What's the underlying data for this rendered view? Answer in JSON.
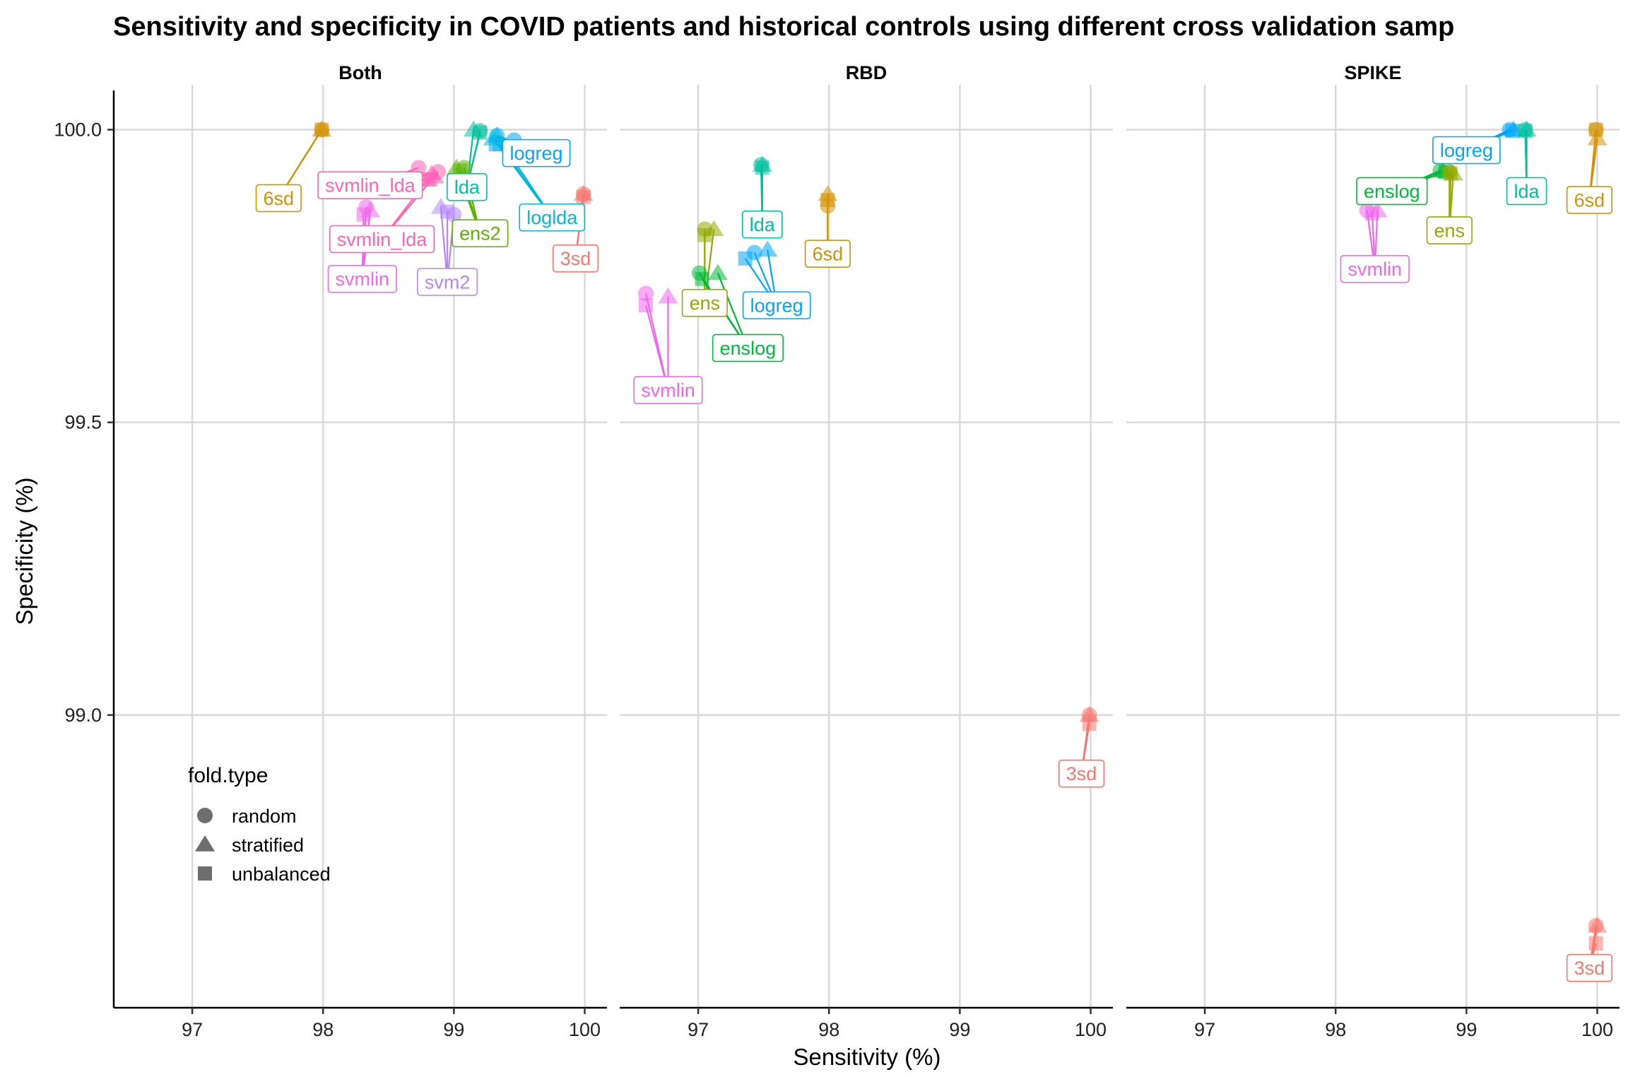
{
  "chart_data": {
    "type": "scatter",
    "title": "Sensitivity and specificity in COVID patients and historical controls using different cross validation samp",
    "xlabel": "Sensitivity (%)",
    "ylabel": "Specificity (%)",
    "xlim": [
      96.4,
      100.17
    ],
    "ylim": [
      98.5,
      100.067
    ],
    "x_ticks": [
      97,
      98,
      99,
      100
    ],
    "x_tick_labels": [
      "97",
      "98",
      "99",
      "100"
    ],
    "y_ticks": [
      99.0,
      99.5,
      100.0
    ],
    "y_tick_labels": [
      "99.0",
      "99.5",
      "100.0"
    ],
    "grid": true,
    "legend": {
      "title": "fold.type",
      "placement": "inside-bottom-left",
      "entries": [
        {
          "label": "random",
          "shape": "circle"
        },
        {
          "label": "stratified",
          "shape": "triangle"
        },
        {
          "label": "unbalanced",
          "shape": "square"
        }
      ]
    },
    "colors": {
      "3sd": "#F8766D",
      "6sd": "#D39200",
      "ens": "#93AA00",
      "ens2": "#5BB300",
      "enslog": "#00BA38",
      "lda": "#00C19F",
      "loglda": "#00B9E3",
      "logreg": "#00A5FF",
      "svm2": "#B385FF",
      "svmlin": "#EF67EB",
      "svmlin_lda": "#FF63B6"
    },
    "panels": [
      {
        "strip": "Both",
        "groups": [
          {
            "method": "6sd",
            "label": "6sd",
            "label_pos": [
              97.66,
              99.883
            ],
            "points": [
              {
                "fold": "random",
                "x": 97.99,
                "y": 100.0
              },
              {
                "fold": "stratified",
                "x": 97.99,
                "y": 100.0
              },
              {
                "fold": "unbalanced",
                "x": 97.99,
                "y": 100.0
              }
            ]
          },
          {
            "method": "svmlin_lda",
            "label": "svmlin_lda",
            "label_pos": [
              98.36,
              99.905
            ],
            "points": [
              {
                "fold": "random",
                "x": 98.73,
                "y": 99.935
              },
              {
                "fold": "stratified",
                "x": 98.83,
                "y": 99.925
              },
              {
                "fold": "unbalanced",
                "x": 98.82,
                "y": 99.915
              }
            ]
          },
          {
            "method": "svmlin_lda",
            "label": "svmlin_lda",
            "label_pos": [
              98.45,
              99.813
            ],
            "points": [
              {
                "fold": "random",
                "x": 98.88,
                "y": 99.928
              },
              {
                "fold": "stratified",
                "x": 98.85,
                "y": 99.92
              },
              {
                "fold": "unbalanced",
                "x": 98.8,
                "y": 99.915
              }
            ]
          },
          {
            "method": "svmlin",
            "label": "svmlin",
            "label_pos": [
              98.3,
              99.745
            ],
            "points": [
              {
                "fold": "random",
                "x": 98.33,
                "y": 99.868
              },
              {
                "fold": "stratified",
                "x": 98.36,
                "y": 99.862
              },
              {
                "fold": "unbalanced",
                "x": 98.31,
                "y": 99.855
              }
            ]
          },
          {
            "method": "svm2",
            "label": "svm2",
            "label_pos": [
              98.95,
              99.74
            ],
            "points": [
              {
                "fold": "random",
                "x": 99.0,
                "y": 99.855
              },
              {
                "fold": "stratified",
                "x": 98.9,
                "y": 99.868
              },
              {
                "fold": "unbalanced",
                "x": 98.95,
                "y": 99.86
              }
            ]
          },
          {
            "method": "lda",
            "label": "lda",
            "label_pos": [
              99.1,
              99.902
            ],
            "points": [
              {
                "fold": "random",
                "x": 99.2,
                "y": 99.998
              },
              {
                "fold": "stratified",
                "x": 99.15,
                "y": 100.0
              },
              {
                "fold": "unbalanced",
                "x": 99.2,
                "y": 99.995
              }
            ]
          },
          {
            "method": "ens2",
            "label": "ens2",
            "label_pos": [
              99.2,
              99.823
            ],
            "points": [
              {
                "fold": "random",
                "x": 99.08,
                "y": 99.935
              },
              {
                "fold": "stratified",
                "x": 99.02,
                "y": 99.935
              },
              {
                "fold": "unbalanced",
                "x": 99.05,
                "y": 99.93
              }
            ]
          },
          {
            "method": "logreg",
            "label": "logreg",
            "label_pos": [
              99.63,
              99.96
            ],
            "points": [
              {
                "fold": "random",
                "x": 99.46,
                "y": 99.982
              },
              {
                "fold": "stratified",
                "x": 99.33,
                "y": 99.99
              },
              {
                "fold": "unbalanced",
                "x": 99.32,
                "y": 99.975
              }
            ]
          },
          {
            "method": "loglda",
            "label": "loglda",
            "label_pos": [
              99.75,
              99.85
            ],
            "points": [
              {
                "fold": "random",
                "x": 99.33,
                "y": 99.99
              },
              {
                "fold": "stratified",
                "x": 99.3,
                "y": 99.985
              },
              {
                "fold": "unbalanced",
                "x": 99.35,
                "y": 99.975
              }
            ]
          },
          {
            "method": "3sd",
            "label": "3sd",
            "label_pos": [
              99.93,
              99.78
            ],
            "points": [
              {
                "fold": "random",
                "x": 99.99,
                "y": 99.89
              },
              {
                "fold": "stratified",
                "x": 99.99,
                "y": 99.89
              },
              {
                "fold": "unbalanced",
                "x": 99.99,
                "y": 99.885
              }
            ]
          }
        ]
      },
      {
        "strip": "RBD",
        "groups": [
          {
            "method": "lda",
            "label": "lda",
            "label_pos": [
              97.49,
              99.838
            ],
            "points": [
              {
                "fold": "random",
                "x": 97.48,
                "y": 99.94
              },
              {
                "fold": "stratified",
                "x": 97.49,
                "y": 99.94
              },
              {
                "fold": "unbalanced",
                "x": 97.49,
                "y": 99.935
              }
            ]
          },
          {
            "method": "6sd",
            "label": "6sd",
            "label_pos": [
              97.99,
              99.788
            ],
            "points": [
              {
                "fold": "random",
                "x": 97.99,
                "y": 99.87
              },
              {
                "fold": "stratified",
                "x": 97.99,
                "y": 99.89
              },
              {
                "fold": "unbalanced",
                "x": 97.99,
                "y": 99.88
              }
            ]
          },
          {
            "method": "ens",
            "label": "ens",
            "label_pos": [
              97.05,
              99.704
            ],
            "points": [
              {
                "fold": "random",
                "x": 97.05,
                "y": 99.83
              },
              {
                "fold": "stratified",
                "x": 97.12,
                "y": 99.83
              },
              {
                "fold": "unbalanced",
                "x": 97.05,
                "y": 99.82
              }
            ]
          },
          {
            "method": "logreg",
            "label": "logreg",
            "label_pos": [
              97.6,
              99.7
            ],
            "points": [
              {
                "fold": "random",
                "x": 97.43,
                "y": 99.79
              },
              {
                "fold": "stratified",
                "x": 97.53,
                "y": 99.795
              },
              {
                "fold": "unbalanced",
                "x": 97.36,
                "y": 99.78
              }
            ]
          },
          {
            "method": "enslog",
            "label": "enslog",
            "label_pos": [
              97.38,
              99.627
            ],
            "points": [
              {
                "fold": "random",
                "x": 97.01,
                "y": 99.755
              },
              {
                "fold": "stratified",
                "x": 97.15,
                "y": 99.755
              },
              {
                "fold": "unbalanced",
                "x": 97.03,
                "y": 99.745
              }
            ]
          },
          {
            "method": "svmlin",
            "label": "svmlin",
            "label_pos": [
              96.77,
              99.555
            ],
            "points": [
              {
                "fold": "random",
                "x": 96.6,
                "y": 99.72
              },
              {
                "fold": "stratified",
                "x": 96.77,
                "y": 99.715
              },
              {
                "fold": "unbalanced",
                "x": 96.6,
                "y": 99.7
              }
            ]
          },
          {
            "method": "3sd",
            "label": "3sd",
            "label_pos": [
              99.93,
              98.9
            ],
            "points": [
              {
                "fold": "random",
                "x": 99.99,
                "y": 99.0
              },
              {
                "fold": "stratified",
                "x": 99.99,
                "y": 99.0
              },
              {
                "fold": "unbalanced",
                "x": 99.99,
                "y": 98.985
              }
            ]
          }
        ]
      },
      {
        "strip": "SPIKE",
        "groups": [
          {
            "method": "logreg",
            "label": "logreg",
            "label_pos": [
              99.0,
              99.965
            ],
            "points": [
              {
                "fold": "random",
                "x": 99.33,
                "y": 100.0
              },
              {
                "fold": "stratified",
                "x": 99.36,
                "y": 100.0
              },
              {
                "fold": "unbalanced",
                "x": 99.35,
                "y": 99.998
              }
            ]
          },
          {
            "method": "enslog",
            "label": "enslog",
            "label_pos": [
              98.43,
              99.895
            ],
            "points": [
              {
                "fold": "random",
                "x": 98.8,
                "y": 99.93
              },
              {
                "fold": "stratified",
                "x": 98.82,
                "y": 99.93
              },
              {
                "fold": "unbalanced",
                "x": 98.84,
                "y": 99.928
              }
            ]
          },
          {
            "method": "lda",
            "label": "lda",
            "label_pos": [
              99.46,
              99.895
            ],
            "points": [
              {
                "fold": "random",
                "x": 99.45,
                "y": 100.0
              },
              {
                "fold": "stratified",
                "x": 99.46,
                "y": 100.0
              },
              {
                "fold": "unbalanced",
                "x": 99.45,
                "y": 99.998
              }
            ]
          },
          {
            "method": "6sd",
            "label": "6sd",
            "label_pos": [
              99.94,
              99.88
            ],
            "points": [
              {
                "fold": "random",
                "x": 99.99,
                "y": 100.0
              },
              {
                "fold": "stratified",
                "x": 100.0,
                "y": 99.985
              },
              {
                "fold": "unbalanced",
                "x": 99.99,
                "y": 100.0
              }
            ]
          },
          {
            "method": "ens",
            "label": "ens",
            "label_pos": [
              98.87,
              99.828
            ],
            "points": [
              {
                "fold": "random",
                "x": 98.87,
                "y": 99.928
              },
              {
                "fold": "stratified",
                "x": 98.9,
                "y": 99.925
              },
              {
                "fold": "unbalanced",
                "x": 98.88,
                "y": 99.925
              }
            ]
          },
          {
            "method": "svmlin",
            "label": "svmlin",
            "label_pos": [
              98.3,
              99.762
            ],
            "points": [
              {
                "fold": "random",
                "x": 98.24,
                "y": 99.862
              },
              {
                "fold": "stratified",
                "x": 98.32,
                "y": 99.862
              },
              {
                "fold": "unbalanced",
                "x": 98.28,
                "y": 99.857
              }
            ]
          },
          {
            "method": "3sd",
            "label": "3sd",
            "label_pos": [
              99.94,
              98.568
            ],
            "points": [
              {
                "fold": "random",
                "x": 99.99,
                "y": 98.64
              },
              {
                "fold": "stratified",
                "x": 100.0,
                "y": 98.64
              },
              {
                "fold": "unbalanced",
                "x": 99.99,
                "y": 98.61
              }
            ]
          }
        ]
      }
    ]
  }
}
